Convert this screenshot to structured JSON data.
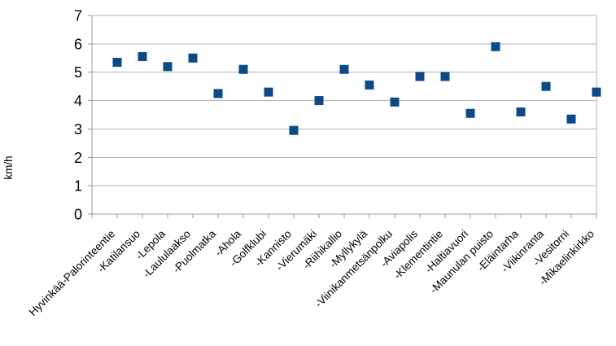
{
  "chart_data": {
    "type": "scatter",
    "title": "",
    "xlabel": "",
    "ylabel": "km/h",
    "categories": [
      "Hyvinkää-Palorinteentie",
      "-Katilansuo",
      "-Lepola",
      "-Laululaakso",
      "-Puolmatka",
      "-Ahola",
      "-Golfklubi",
      "-Kannisto",
      "-Vierumäki",
      "-Riihikallio",
      "-Myllykylä",
      "-Viinikanmetsänpolku",
      "-Aviapolis",
      "-Klementintie",
      "-Haltiavuori",
      "-Maunulan puisto",
      "-Eläintarha",
      "-Viikinranta",
      "-Vesitorni",
      "-Mikaelinkirkko"
    ],
    "values": [
      5.35,
      5.55,
      5.2,
      5.5,
      4.25,
      5.1,
      4.3,
      2.95,
      4.0,
      5.1,
      4.55,
      3.95,
      4.85,
      4.85,
      3.55,
      5.9,
      3.6,
      4.5,
      3.35,
      4.3
    ],
    "ylim": [
      0,
      7
    ],
    "yticks": [
      0,
      1,
      2,
      3,
      4,
      5,
      6,
      7
    ],
    "grid": "horizontal",
    "legend": "none",
    "marker": "square",
    "marker_size_px": 11,
    "x_label_rotation_deg": 45,
    "colors": {
      "marker": "#0a4a88",
      "grid": "#b3b3b3",
      "axis": "#999999",
      "text": "#000000",
      "background": "#ffffff"
    }
  }
}
